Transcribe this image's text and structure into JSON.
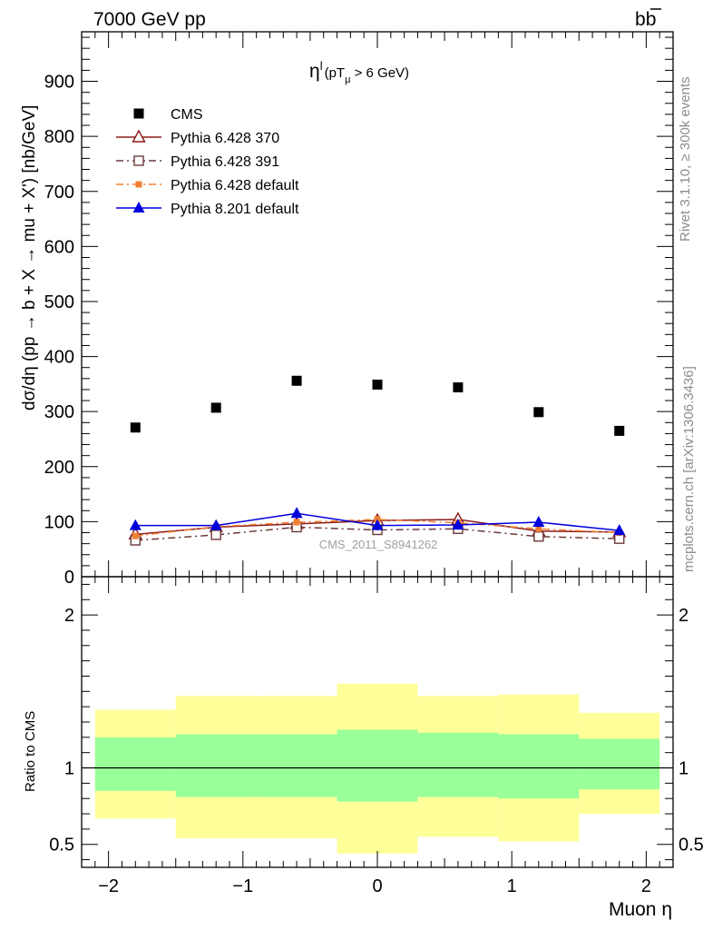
{
  "header": {
    "left_title": "7000 GeV pp",
    "right_title": "b",
    "right_title_bar": "b"
  },
  "side_labels": {
    "rivet": "Rivet 3.1.10, ≥ 300k events",
    "mcplots": "mcplots.cern.ch [arXiv:1306.3436]"
  },
  "chart_data": {
    "type": "scatter",
    "title": "η",
    "title_sup": "l",
    "title_cut": "(pT",
    "title_sub": "μ",
    "title_cut_rest": " >  6 GeV)",
    "ylabel": "dσ/dη (pp → b + X → mu + X') [nb/GeV]",
    "xlabel": "Muon η",
    "ratio_ylabel": "Ratio to CMS",
    "watermark": "CMS_2011_S8941262",
    "xlim": [
      -2.2,
      2.2
    ],
    "ylim": [
      0,
      990
    ],
    "ratio_ylim": [
      0.35,
      2.25
    ],
    "xticks": [
      -2,
      -1,
      0,
      1,
      2
    ],
    "xtick_labels": [
      "−2",
      "−1",
      "0",
      "1",
      "2"
    ],
    "yticks": [
      0,
      100,
      200,
      300,
      400,
      500,
      600,
      700,
      800,
      900
    ],
    "ytick_labels": [
      "0",
      "100",
      "200",
      "300",
      "400",
      "500",
      "600",
      "700",
      "800",
      "900"
    ],
    "ratio_yticks": [
      0.5,
      1,
      2
    ],
    "ratio_ytick_labels": [
      "0.5",
      "1",
      "2"
    ],
    "x": [
      -1.8,
      -1.2,
      -0.6,
      0,
      0.6,
      1.2,
      1.8
    ],
    "bin_edges": [
      -2.1,
      -1.5,
      -0.9,
      -0.3,
      0.3,
      0.9,
      1.5,
      2.1
    ],
    "cms": [
      271,
      307,
      356,
      349,
      344,
      299,
      265
    ],
    "ratio_band_inner": [
      [
        0.85,
        1.2
      ],
      [
        0.81,
        1.22
      ],
      [
        0.81,
        1.22
      ],
      [
        0.78,
        1.25
      ],
      [
        0.81,
        1.23
      ],
      [
        0.8,
        1.22
      ],
      [
        0.86,
        1.19
      ]
    ],
    "ratio_band_outer": [
      [
        0.67,
        1.38
      ],
      [
        0.54,
        1.47
      ],
      [
        0.54,
        1.47
      ],
      [
        0.44,
        1.55
      ],
      [
        0.55,
        1.47
      ],
      [
        0.52,
        1.48
      ],
      [
        0.7,
        1.36
      ]
    ],
    "series": [
      {
        "name": "CMS",
        "marker": "square-filled",
        "color": "#000000"
      },
      {
        "name": "Pythia 6.428 370",
        "marker": "triangle-open",
        "color": "#8b1a1a",
        "dash": "solid",
        "values": [
          77,
          90,
          96,
          102,
          104,
          83,
          81
        ],
        "errors": [
          6,
          6,
          6,
          6,
          6,
          6,
          6
        ]
      },
      {
        "name": "Pythia 6.428 391",
        "marker": "square-open",
        "color": "#6b3a3a",
        "dash": "dashdot",
        "values": [
          66,
          76,
          90,
          85,
          87,
          73,
          69
        ],
        "errors": [
          5,
          5,
          5,
          5,
          5,
          5,
          5
        ]
      },
      {
        "name": "Pythia 6.428 default",
        "marker": "square-small-filled",
        "color": "#f08030",
        "dash": "dashdot",
        "values": [
          74,
          91,
          99,
          104,
          98,
          87,
          80
        ],
        "errors": [
          5,
          5,
          5,
          5,
          5,
          5,
          5
        ]
      },
      {
        "name": "Pythia 8.201 default",
        "marker": "triangle-filled",
        "color": "#0000dd",
        "dash": "solid",
        "values": [
          93,
          93,
          115,
          93,
          94,
          99,
          84
        ],
        "errors": [
          9,
          9,
          10,
          9,
          9,
          9,
          9
        ]
      }
    ]
  },
  "colors": {
    "band_inner": "#99ff99",
    "band_outer": "#ffff99"
  }
}
